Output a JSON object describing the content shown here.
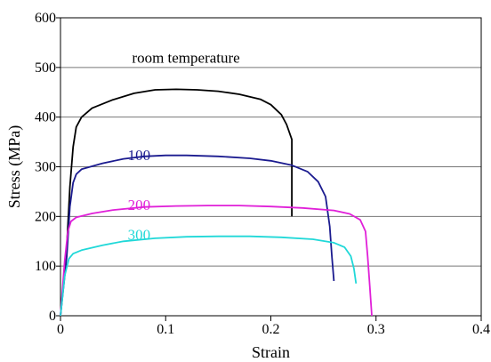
{
  "chart_data": {
    "type": "line",
    "xlabel": "Strain",
    "ylabel": "Stress (MPa)",
    "xlim": [
      0,
      0.4
    ],
    "ylim": [
      0,
      600
    ],
    "xticks": [
      0,
      0.1,
      0.2,
      0.3,
      0.4
    ],
    "yticks": [
      0,
      100,
      200,
      300,
      400,
      500,
      600
    ],
    "xtick_labels": [
      "0",
      "0.1",
      "0.2",
      "0.3",
      "0.4"
    ],
    "ytick_labels": [
      "0",
      "100",
      "200",
      "300",
      "400",
      "500",
      "600"
    ],
    "grid": "horizontal",
    "series": [
      {
        "name": "room temperature",
        "color": "#000000",
        "points": [
          [
            0,
            0
          ],
          [
            0.006,
            140
          ],
          [
            0.009,
            260
          ],
          [
            0.012,
            340
          ],
          [
            0.015,
            380
          ],
          [
            0.02,
            400
          ],
          [
            0.03,
            418
          ],
          [
            0.05,
            435
          ],
          [
            0.07,
            448
          ],
          [
            0.09,
            455
          ],
          [
            0.11,
            456
          ],
          [
            0.13,
            455
          ],
          [
            0.15,
            452
          ],
          [
            0.17,
            446
          ],
          [
            0.19,
            436
          ],
          [
            0.2,
            425
          ],
          [
            0.21,
            405
          ],
          [
            0.215,
            385
          ],
          [
            0.22,
            355
          ],
          [
            0.22,
            200
          ]
        ]
      },
      {
        "name": "100",
        "color": "#1b1b8f",
        "points": [
          [
            0,
            0
          ],
          [
            0.006,
            120
          ],
          [
            0.009,
            220
          ],
          [
            0.012,
            268
          ],
          [
            0.015,
            285
          ],
          [
            0.02,
            295
          ],
          [
            0.04,
            307
          ],
          [
            0.06,
            316
          ],
          [
            0.08,
            321
          ],
          [
            0.1,
            323
          ],
          [
            0.12,
            323
          ],
          [
            0.15,
            321
          ],
          [
            0.18,
            317
          ],
          [
            0.2,
            312
          ],
          [
            0.22,
            303
          ],
          [
            0.235,
            290
          ],
          [
            0.245,
            270
          ],
          [
            0.252,
            240
          ],
          [
            0.256,
            180
          ],
          [
            0.258,
            120
          ],
          [
            0.26,
            70
          ]
        ]
      },
      {
        "name": "200",
        "color": "#e020d8",
        "points": [
          [
            0,
            0
          ],
          [
            0.004,
            110
          ],
          [
            0.007,
            170
          ],
          [
            0.01,
            190
          ],
          [
            0.015,
            198
          ],
          [
            0.03,
            206
          ],
          [
            0.05,
            213
          ],
          [
            0.08,
            219
          ],
          [
            0.11,
            221
          ],
          [
            0.14,
            222
          ],
          [
            0.17,
            222
          ],
          [
            0.2,
            220
          ],
          [
            0.23,
            217
          ],
          [
            0.26,
            212
          ],
          [
            0.275,
            205
          ],
          [
            0.285,
            193
          ],
          [
            0.29,
            170
          ],
          [
            0.292,
            120
          ],
          [
            0.294,
            60
          ],
          [
            0.296,
            0
          ]
        ]
      },
      {
        "name": "300",
        "color": "#20d8d8",
        "points": [
          [
            0,
            0
          ],
          [
            0.004,
            80
          ],
          [
            0.008,
            115
          ],
          [
            0.012,
            125
          ],
          [
            0.02,
            132
          ],
          [
            0.04,
            142
          ],
          [
            0.06,
            150
          ],
          [
            0.09,
            156
          ],
          [
            0.12,
            159
          ],
          [
            0.15,
            160
          ],
          [
            0.18,
            160
          ],
          [
            0.21,
            158
          ],
          [
            0.24,
            154
          ],
          [
            0.26,
            147
          ],
          [
            0.27,
            138
          ],
          [
            0.276,
            120
          ],
          [
            0.279,
            95
          ],
          [
            0.281,
            65
          ]
        ]
      }
    ],
    "annotations": [
      "room temperature",
      "100",
      "200",
      "300"
    ]
  }
}
